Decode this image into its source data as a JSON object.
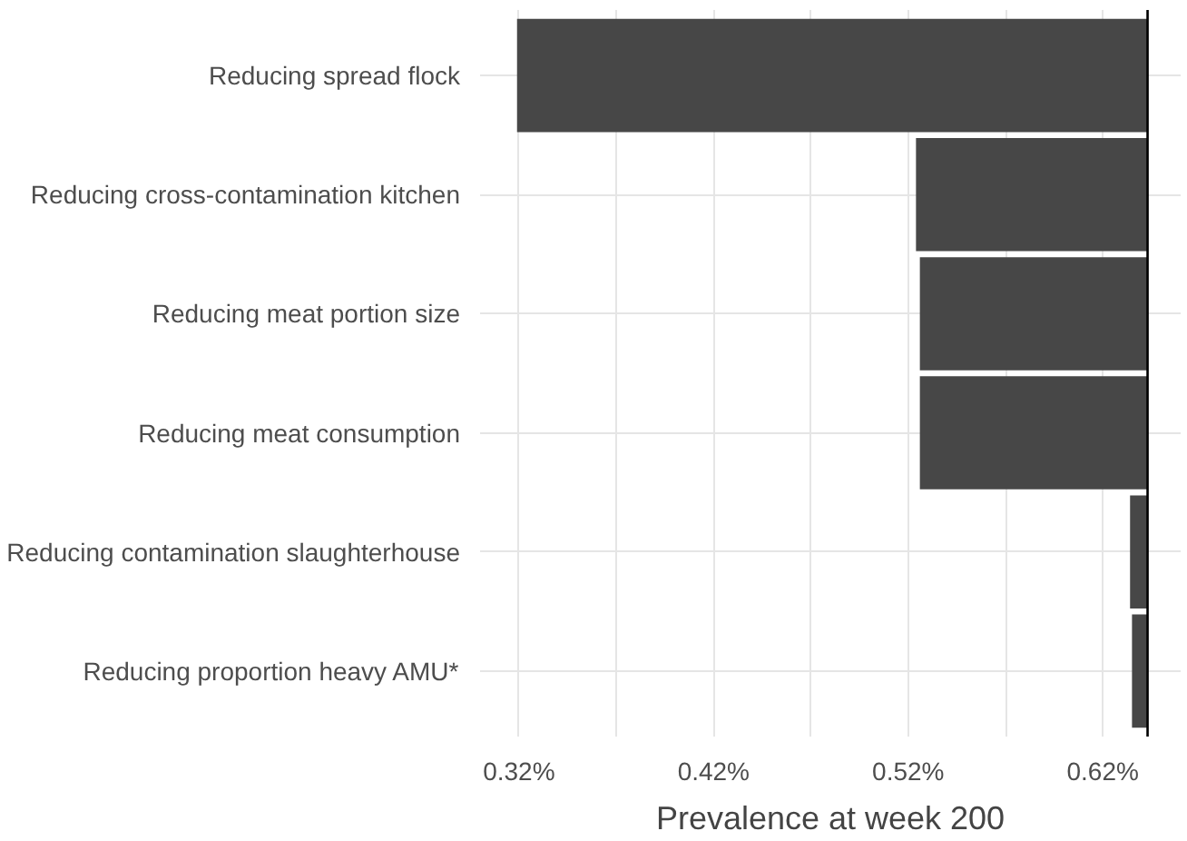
{
  "chart_data": {
    "type": "bar",
    "orientation": "horizontal",
    "xlabel": "Prevalence at week 200",
    "categories": [
      "Reducing spread flock",
      "Reducing cross-contamination kitchen",
      "Reducing meat portion size",
      "Reducing meat consumption",
      "Reducing contamination slaughterhouse",
      "Reducing proportion heavy AMU*"
    ],
    "base": [
      0.319,
      0.524,
      0.526,
      0.526,
      0.634,
      0.635
    ],
    "values": [
      0.324,
      0.119,
      0.117,
      0.117,
      0.009,
      0.008
    ],
    "color": "#474747",
    "xlim": [
      0.3,
      0.66
    ],
    "xticks": [
      {
        "value": 0.32,
        "label": "0.32%"
      },
      {
        "value": 0.37,
        "label": null
      },
      {
        "value": 0.42,
        "label": "0.42%"
      },
      {
        "value": 0.47,
        "label": null
      },
      {
        "value": 0.52,
        "label": "0.52%"
      },
      {
        "value": 0.57,
        "label": null
      },
      {
        "value": 0.62,
        "label": "0.62%"
      }
    ],
    "ref_lines": [
      {
        "axis": "x",
        "value": 0.643,
        "color": "#000000"
      }
    ],
    "grid": true
  }
}
